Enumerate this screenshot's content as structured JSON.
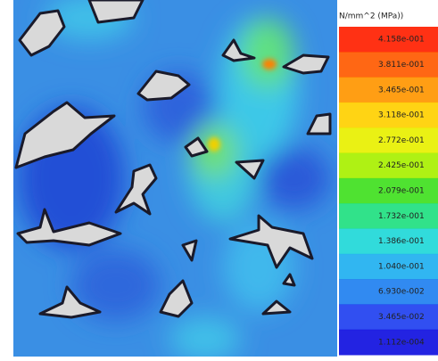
{
  "legend": {
    "unit": "N/mm^2 (MPa))",
    "labels": [
      "4.158e-001",
      "3.811e-001",
      "3.465e-001",
      "3.118e-001",
      "2.772e-001",
      "2.425e-001",
      "2.079e-001",
      "1.732e-001",
      "1.386e-001",
      "1.040e-001",
      "6.930e-002",
      "3.465e-002",
      "1.112e-004"
    ],
    "colors": [
      "#ff2000",
      "#ff5a00",
      "#ff9600",
      "#ffd000",
      "#e8f000",
      "#a8f000",
      "#40e020",
      "#20e080",
      "#20d8d8",
      "#20b0f0",
      "#2080f0",
      "#2040f0",
      "#1010e0"
    ]
  }
}
